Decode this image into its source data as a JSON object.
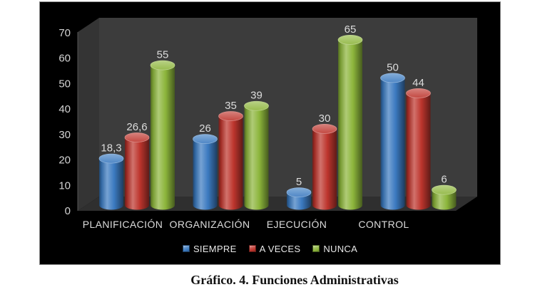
{
  "caption": "Gráfico. 4. Funciones Administrativas",
  "chart": {
    "background": "#000000",
    "border_color": "#8a8a8a",
    "back_wall_color": "#3c3c3c",
    "left_wall_color": "#343434",
    "floor_color": "#2f2f2f",
    "tick_text_color": "#d4d4d4",
    "label_text_color": "#dcdcdc",
    "legend_text_color": "#e8e8e8",
    "y_axis": {
      "ticks": [
        "0",
        "10",
        "20",
        "30",
        "40",
        "50",
        "60",
        "70"
      ]
    }
  },
  "chart_data": {
    "type": "bar",
    "subtype": "3d-cylinder",
    "title": "",
    "xlabel": "",
    "ylabel": "",
    "categories": [
      "PLANIFICACIÓN",
      "ORGANIZACIÓN",
      "EJECUCIÓN",
      "CONTROL"
    ],
    "series": [
      {
        "name": "SIEMPRE",
        "color": "#3b7ac0",
        "values": [
          18.3,
          26,
          5,
          50
        ],
        "display": [
          "18,3",
          "26",
          "5",
          "50"
        ]
      },
      {
        "name": "A VECES",
        "color": "#bd352d",
        "values": [
          26.6,
          35,
          30,
          44
        ],
        "display": [
          "26,6",
          "35",
          "30",
          "44"
        ]
      },
      {
        "name": "NUNCA",
        "color": "#8cb53b",
        "values": [
          55,
          39,
          65,
          6
        ],
        "display": [
          "55",
          "39",
          "65",
          "6"
        ]
      }
    ],
    "ylim": [
      0,
      70
    ],
    "y_tick_step": 10,
    "grid": false,
    "legend_position": "bottom"
  }
}
